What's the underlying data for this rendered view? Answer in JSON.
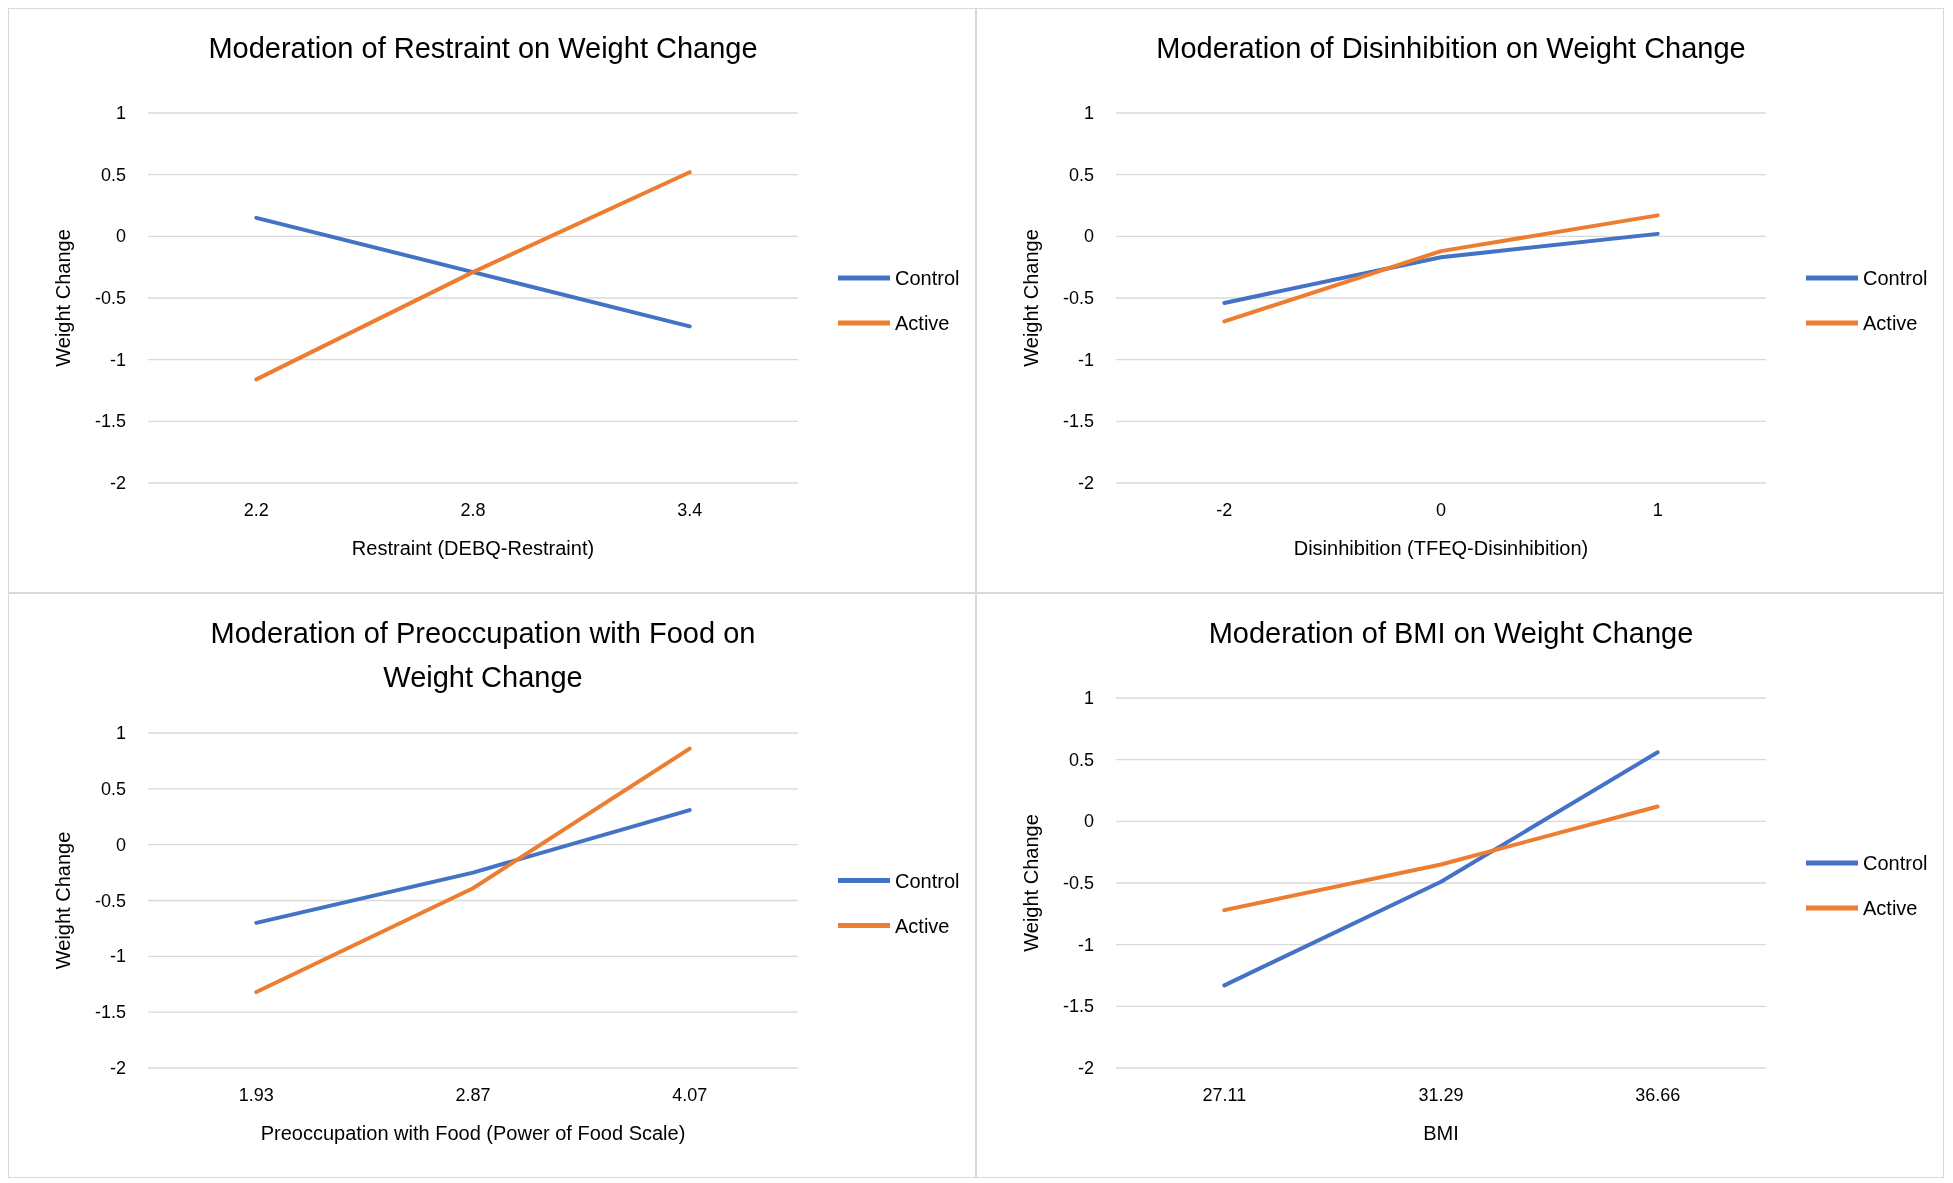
{
  "chart_data": [
    {
      "type": "line",
      "title": "Moderation of Restraint on Weight Change",
      "xlabel": "Restraint (DEBQ-Restraint)",
      "ylabel": "Weight Change",
      "categories": [
        "2.2",
        "2.8",
        "3.4"
      ],
      "series": [
        {
          "name": "Control",
          "color": "#4472c4",
          "values": [
            0.15,
            -0.29,
            -0.73
          ]
        },
        {
          "name": "Active",
          "color": "#ed7d31",
          "values": [
            -1.16,
            -0.29,
            0.52
          ]
        }
      ],
      "ylim": [
        -2,
        1
      ],
      "yticks": [
        -2,
        -1.5,
        -1,
        -0.5,
        0,
        0.5,
        1
      ],
      "grid": "y",
      "legend": "right",
      "marker": "none"
    },
    {
      "type": "line",
      "title": "Moderation of Disinhibition on Weight Change",
      "xlabel": "Disinhibition  (TFEQ-Disinhibition)",
      "ylabel": "Weight Change",
      "categories": [
        "-2",
        "0",
        "1"
      ],
      "series": [
        {
          "name": "Control",
          "color": "#4472c4",
          "values": [
            -0.54,
            -0.17,
            0.02
          ]
        },
        {
          "name": "Active",
          "color": "#ed7d31",
          "values": [
            -0.69,
            -0.12,
            0.17
          ]
        }
      ],
      "ylim": [
        -2,
        1
      ],
      "yticks": [
        -2,
        -1.5,
        -1,
        -0.5,
        0,
        0.5,
        1
      ],
      "grid": "y",
      "legend": "right",
      "marker": "none"
    },
    {
      "type": "line",
      "title": "Moderation of Preoccupation with Food on Weight Change",
      "xlabel": "Preoccupation with Food (Power of Food Scale)",
      "ylabel": "Weight Change",
      "categories": [
        "1.93",
        "2.87",
        "4.07"
      ],
      "series": [
        {
          "name": "Control",
          "color": "#4472c4",
          "values": [
            -0.7,
            -0.25,
            0.31
          ]
        },
        {
          "name": "Active",
          "color": "#ed7d31",
          "values": [
            -1.32,
            -0.39,
            0.86
          ]
        }
      ],
      "ylim": [
        -2,
        1
      ],
      "yticks": [
        -2,
        -1.5,
        -1,
        -0.5,
        0,
        0.5,
        1
      ],
      "grid": "y",
      "legend": "right",
      "marker": "none"
    },
    {
      "type": "line",
      "title": "Moderation of BMI on Weight Change",
      "xlabel": "BMI",
      "ylabel": "Weight Change",
      "categories": [
        "27.11",
        "31.29",
        "36.66"
      ],
      "series": [
        {
          "name": "Control",
          "color": "#4472c4",
          "values": [
            -1.33,
            -0.49,
            0.56
          ]
        },
        {
          "name": "Active",
          "color": "#ed7d31",
          "values": [
            -0.72,
            -0.35,
            0.12
          ]
        }
      ],
      "ylim": [
        -2,
        1
      ],
      "yticks": [
        -2,
        -1.5,
        -1,
        -0.5,
        0,
        0.5,
        1
      ],
      "grid": "y",
      "legend": "right",
      "marker": "none"
    }
  ]
}
